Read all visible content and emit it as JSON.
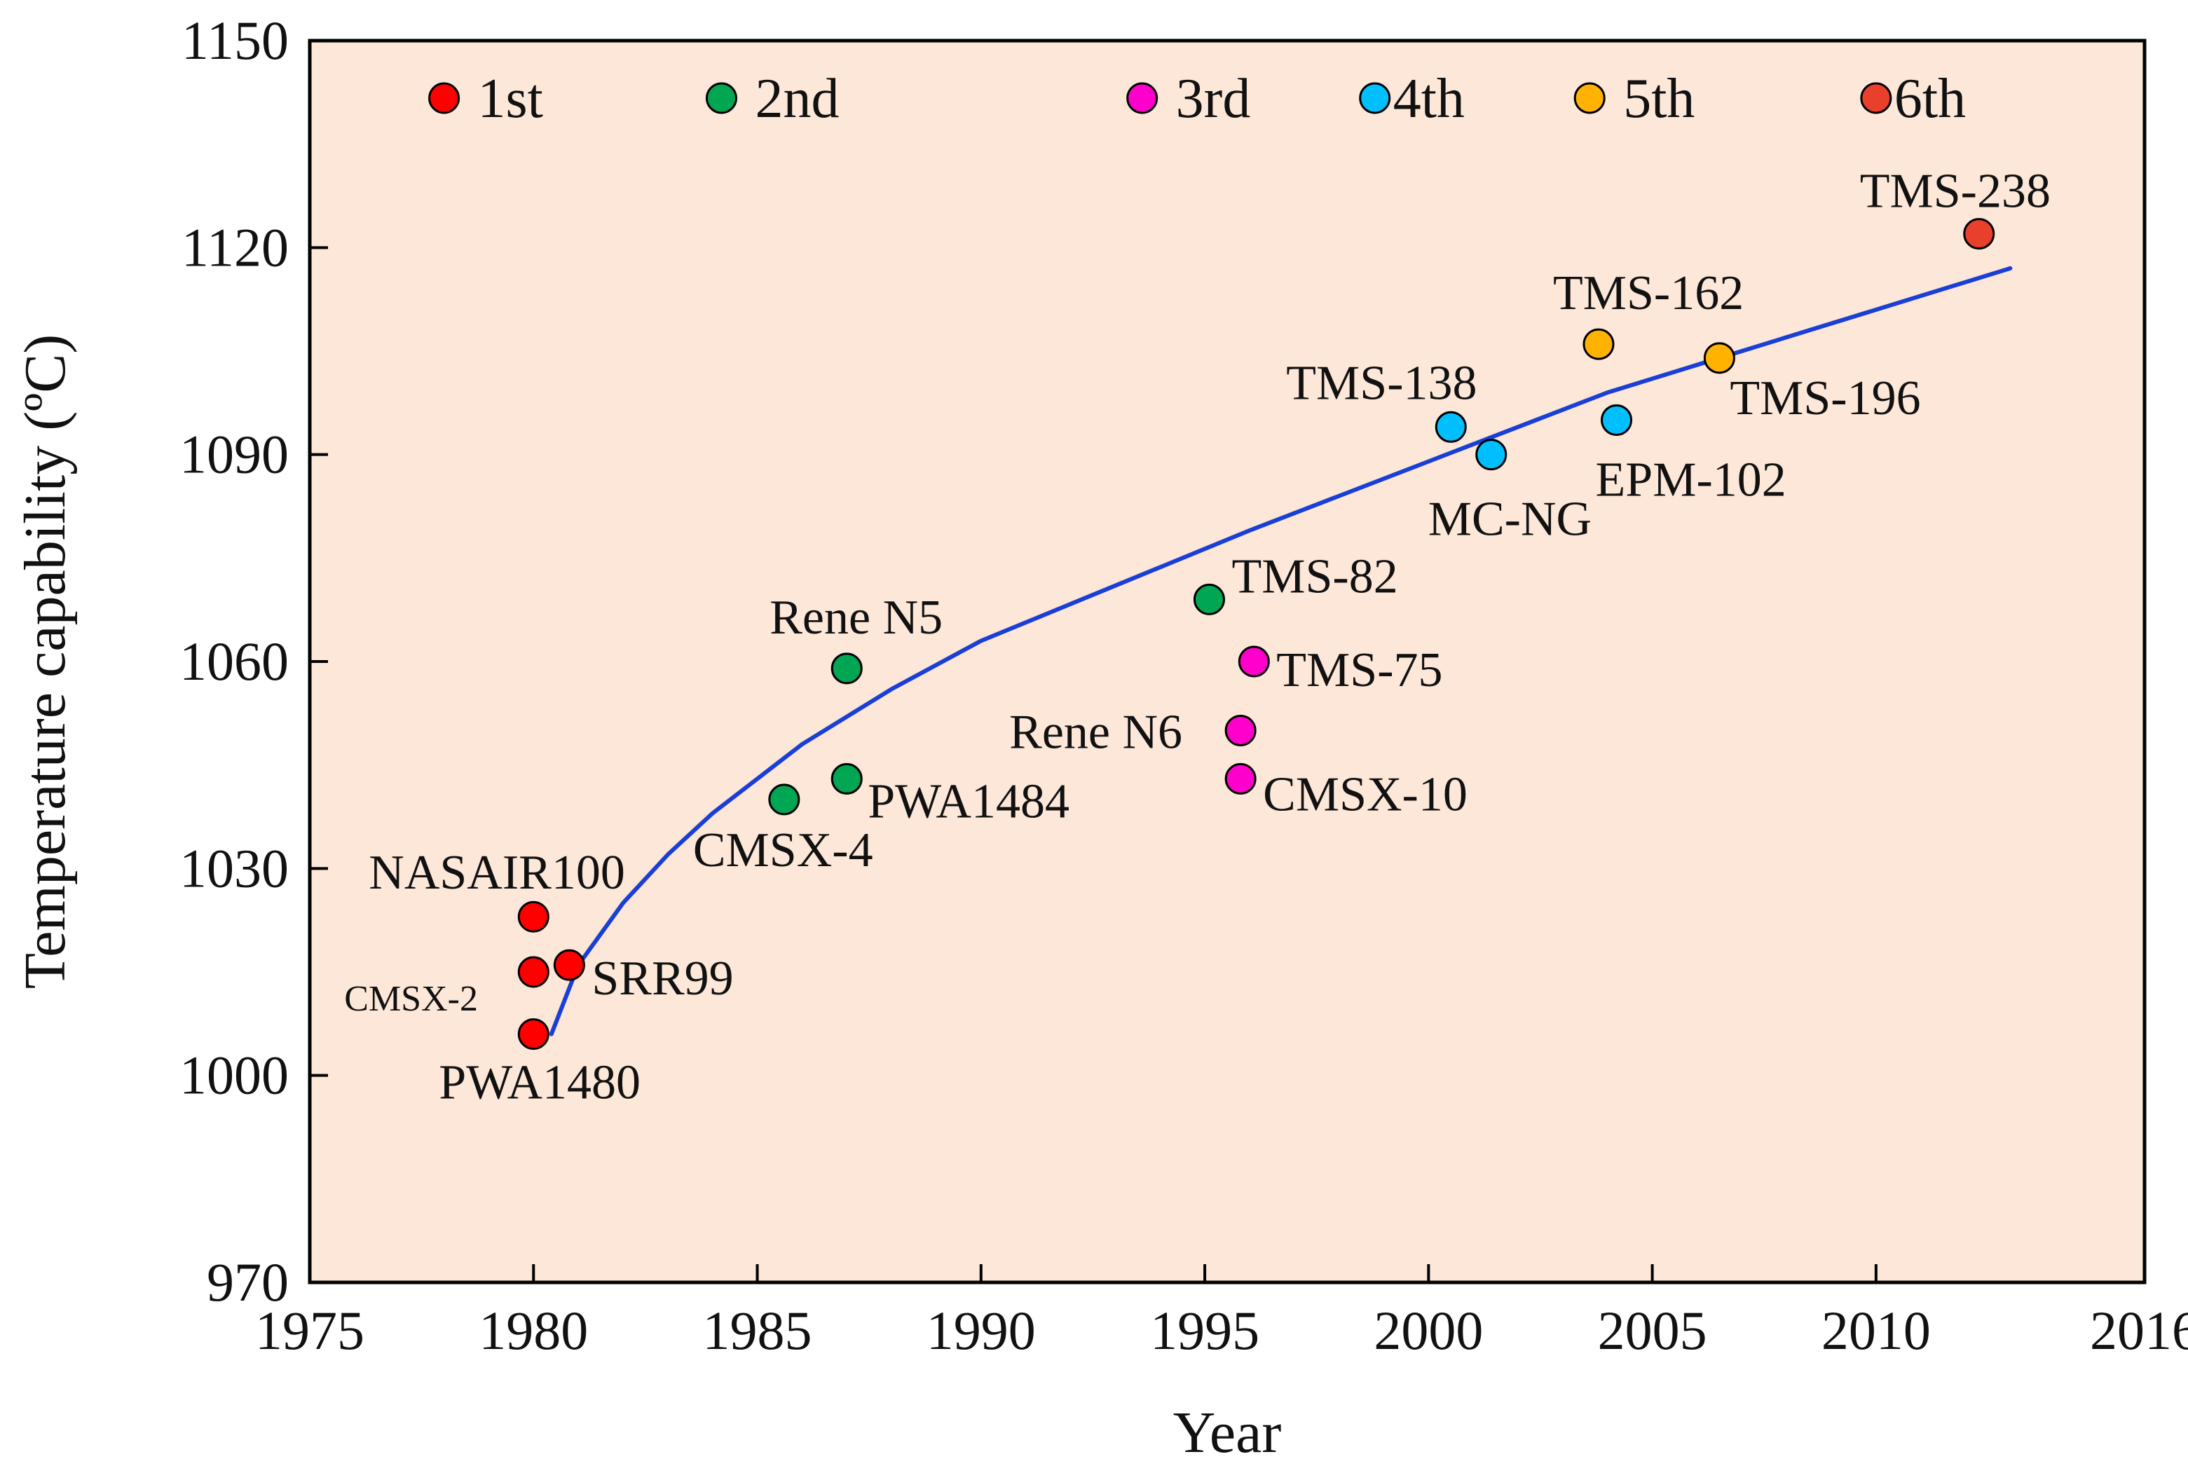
{
  "chart_data": {
    "type": "scatter",
    "title": "",
    "xlabel": "Year",
    "ylabel": "Temperature capability (ºC)",
    "xlim": [
      1975,
      2016
    ],
    "ylim": [
      970,
      1150
    ],
    "xticks": [
      1975,
      1980,
      1985,
      1990,
      1995,
      2000,
      2005,
      2010,
      2016
    ],
    "yticks": [
      970,
      1000,
      1030,
      1060,
      1090,
      1120,
      1150
    ],
    "plot_background": "#fce7d9",
    "grid": false,
    "legend_position": "top",
    "series": [
      {
        "name": "1st",
        "color": "#ff0000",
        "points": [
          {
            "label": "NASAIR100",
            "x": 1980.0,
            "y": 1023
          },
          {
            "label": "CMSX-2",
            "x": 1980.0,
            "y": 1015
          },
          {
            "label": "SRR99",
            "x": 1980.8,
            "y": 1016
          },
          {
            "label": "PWA1480",
            "x": 1980.0,
            "y": 1006
          }
        ]
      },
      {
        "name": "2nd",
        "color": "#00a651",
        "points": [
          {
            "label": "Rene N5",
            "x": 1987.0,
            "y": 1059
          },
          {
            "label": "PWA1484",
            "x": 1987.0,
            "y": 1043
          },
          {
            "label": "CMSX-4",
            "x": 1985.6,
            "y": 1040
          },
          {
            "label": "TMS-82",
            "x": 1995.1,
            "y": 1069
          }
        ]
      },
      {
        "name": "3rd",
        "color": "#ff00cc",
        "points": [
          {
            "label": "TMS-75",
            "x": 1996.1,
            "y": 1060
          },
          {
            "label": "Rene N6",
            "x": 1995.8,
            "y": 1050
          },
          {
            "label": "CMSX-10",
            "x": 1995.8,
            "y": 1043
          }
        ]
      },
      {
        "name": "4th",
        "color": "#00bfff",
        "points": [
          {
            "label": "TMS-138",
            "x": 2000.5,
            "y": 1094
          },
          {
            "label": "MC-NG",
            "x": 2001.4,
            "y": 1090
          },
          {
            "label": "EPM-102",
            "x": 2004.2,
            "y": 1095
          }
        ]
      },
      {
        "name": "5th",
        "color": "#ffb300",
        "points": [
          {
            "label": "TMS-162",
            "x": 2003.8,
            "y": 1106
          },
          {
            "label": "TMS-196",
            "x": 2006.5,
            "y": 1104
          }
        ]
      },
      {
        "name": "6th",
        "color": "#e8402a",
        "points": [
          {
            "label": "TMS-238",
            "x": 2012.3,
            "y": 1122
          }
        ]
      }
    ],
    "trend_line": {
      "color": "#1a3fd6",
      "x": [
        1980.4,
        1981,
        1982,
        1983,
        1984,
        1986,
        1988,
        1990,
        1993,
        1996,
        2000,
        2004,
        2008,
        2013
      ],
      "y": [
        1006,
        1016,
        1025,
        1032,
        1038,
        1048,
        1056,
        1063,
        1071,
        1079,
        1089,
        1099,
        1107,
        1117
      ]
    }
  }
}
